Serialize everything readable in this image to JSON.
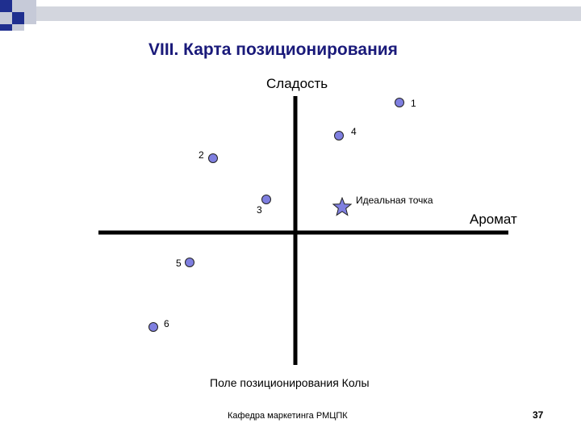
{
  "title": "VIII. Карта позиционирования",
  "axes": {
    "y_label": "Сладость",
    "x_label": "Аромат"
  },
  "points": [
    {
      "label": "1"
    },
    {
      "label": "2"
    },
    {
      "label": "3"
    },
    {
      "label": "4"
    },
    {
      "label": "5"
    },
    {
      "label": "6"
    }
  ],
  "ideal_point": {
    "label": "Идеальная точка"
  },
  "caption": "Поле позиционирования Колы",
  "footer": "Кафедра маркетинга РМЦПК",
  "page_number": "37",
  "colors": {
    "title": "#1a1a7a",
    "point_fill": "#7f7fe0",
    "axis": "#000000",
    "decor_blue": "#1f2f8f",
    "decor_light": "#d0d4e0"
  }
}
